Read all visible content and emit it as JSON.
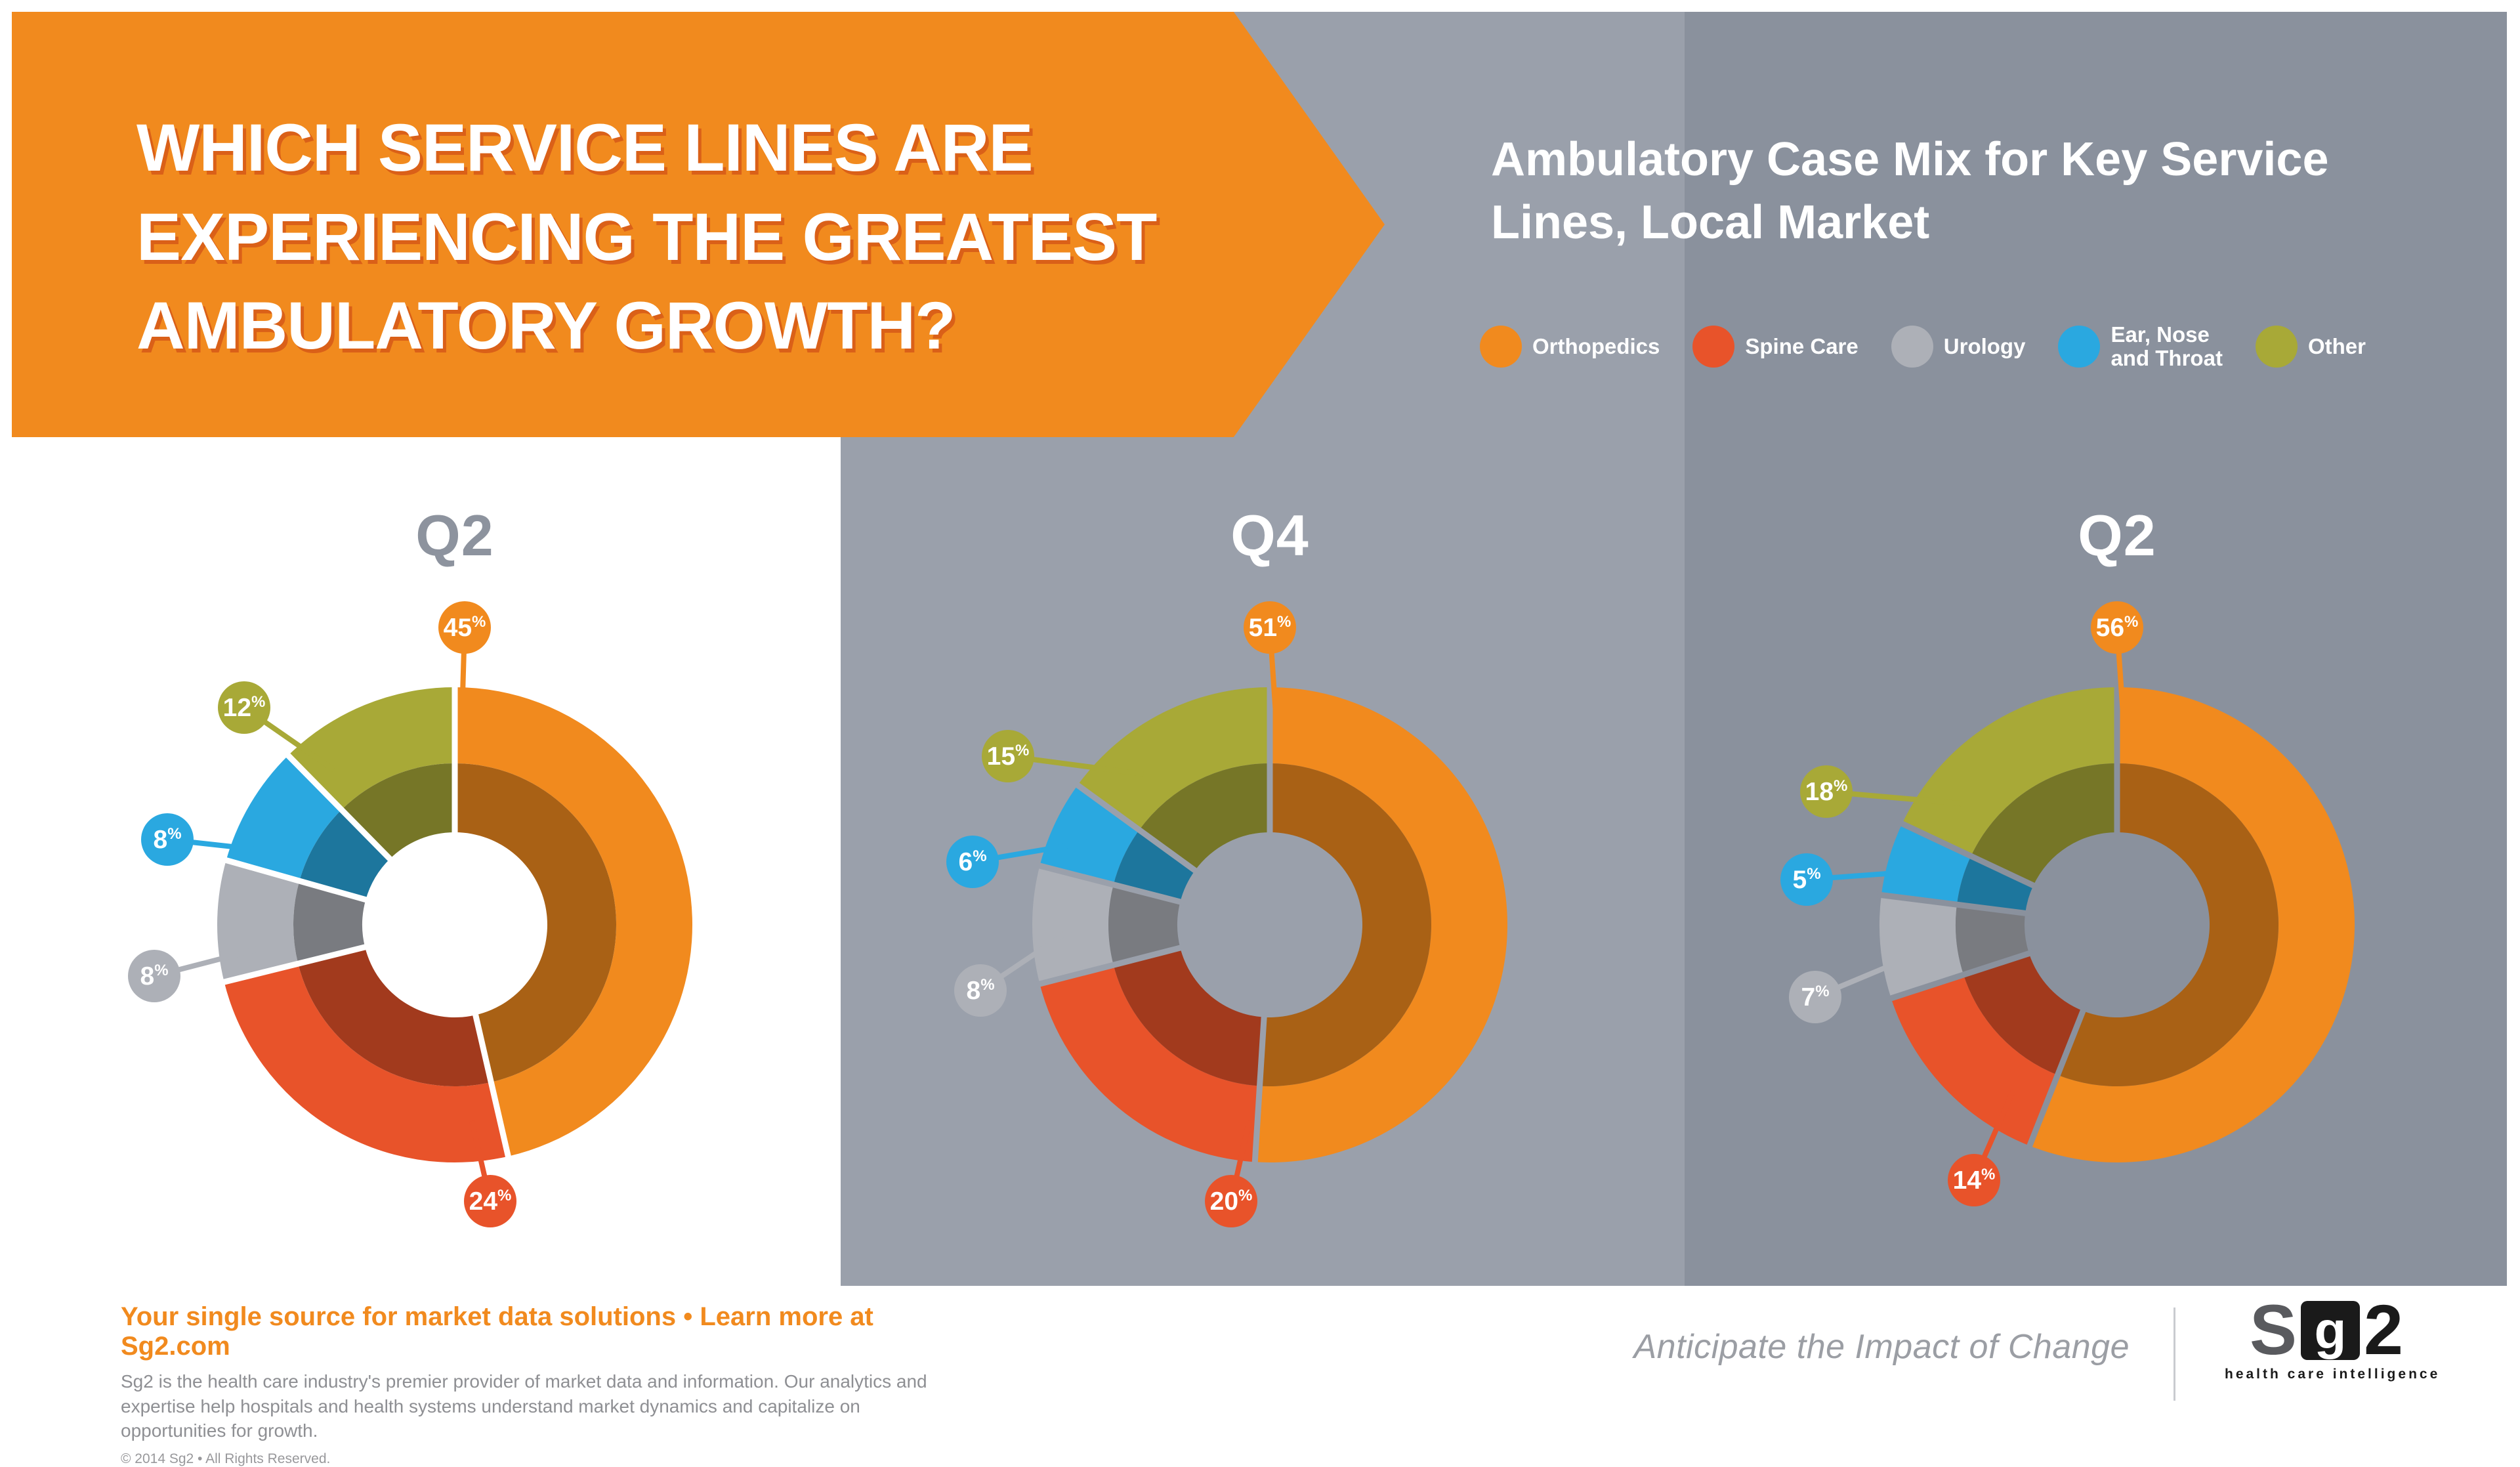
{
  "banner": {
    "title_lines": [
      "WHICH SERVICE LINES ARE",
      "EXPERIENCING THE GREATEST",
      "AMBULATORY GROWTH?"
    ],
    "bg_color": "#F18A1E"
  },
  "header": {
    "subtitle": "Ambulatory Case Mix for Key Service\nLines, Local Market"
  },
  "legend": {
    "items": [
      {
        "label": "Orthopedics",
        "color": "#F18A1E"
      },
      {
        "label": "Spine Care",
        "color": "#E8532A"
      },
      {
        "label": "Urology",
        "color": "#ADB0B7"
      },
      {
        "label": "Ear, Nose\nand Throat",
        "color": "#2AA8E0"
      },
      {
        "label": "Other",
        "color": "#A8A937"
      }
    ]
  },
  "chart_data": [
    {
      "type": "donut",
      "title": "Q2",
      "title_color": "#8D939E",
      "panel_bg": "#FFFFFF",
      "unit": "%",
      "segments": [
        {
          "label": "Orthopedics",
          "value": 45,
          "color": "#F18A1E",
          "badge_offset": [
            15,
            -453
          ],
          "attach_deg": 2
        },
        {
          "label": "Spine Care",
          "value": 24,
          "color": "#E8532A",
          "badge_offset": [
            54,
            421
          ],
          "attach_deg": 175
        },
        {
          "label": "Urology",
          "value": 8,
          "color": "#ADB0B7",
          "badge_offset": [
            -458,
            78
          ],
          "attach_deg": 263
        },
        {
          "label": "Ear, Nose and Throat",
          "value": 8,
          "color": "#2AA8E0",
          "badge_offset": [
            -438,
            -130
          ],
          "attach_deg": 292
        },
        {
          "label": "Other",
          "value": 12,
          "color": "#A8A937",
          "badge_offset": [
            -321,
            -331
          ],
          "attach_deg": 322
        }
      ]
    },
    {
      "type": "donut",
      "title": "Q4",
      "title_color": "#FFFFFF",
      "panel_bg": "#9AA0AB",
      "unit": "%",
      "segments": [
        {
          "label": "Orthopedics",
          "value": 51,
          "color": "#F18A1E",
          "badge_offset": [
            0,
            -453
          ],
          "attach_deg": 2
        },
        {
          "label": "Spine Care",
          "value": 20,
          "color": "#E8532A",
          "badge_offset": [
            -59,
            421
          ],
          "attach_deg": 186
        },
        {
          "label": "Urology",
          "value": 8,
          "color": "#ADB0B7",
          "badge_offset": [
            -441,
            100
          ],
          "attach_deg": 269
        },
        {
          "label": "Ear, Nose and Throat",
          "value": 6,
          "color": "#2AA8E0",
          "badge_offset": [
            -453,
            -96
          ],
          "attach_deg": 295
        },
        {
          "label": "Other",
          "value": 15,
          "color": "#A8A937",
          "badge_offset": [
            -399,
            -257
          ],
          "attach_deg": 320
        }
      ]
    },
    {
      "type": "donut",
      "title": "Q2",
      "title_color": "#FFFFFF",
      "panel_bg": "#8A919D",
      "unit": "%",
      "segments": [
        {
          "label": "Orthopedics",
          "value": 56,
          "color": "#F18A1E",
          "badge_offset": [
            0,
            -453
          ],
          "attach_deg": 2
        },
        {
          "label": "Spine Care",
          "value": 14,
          "color": "#E8532A",
          "badge_offset": [
            -218,
            389
          ],
          "attach_deg": 212
        },
        {
          "label": "Urology",
          "value": 7,
          "color": "#ADB0B7",
          "badge_offset": [
            -460,
            110
          ],
          "attach_deg": 262
        },
        {
          "label": "Ear, Nose and Throat",
          "value": 5,
          "color": "#2AA8E0",
          "badge_offset": [
            -473,
            -69
          ],
          "attach_deg": 286
        },
        {
          "label": "Other",
          "value": 18,
          "color": "#A8A937",
          "badge_offset": [
            -443,
            -203
          ],
          "attach_deg": 308
        }
      ]
    }
  ],
  "footer": {
    "tagline": "Your single source for market data solutions • Learn more at Sg2.com",
    "description": "Sg2 is the health care industry's premier provider of market data and information. Our analytics and expertise help hospitals and health systems understand market dynamics and capitalize on opportunities for growth.",
    "copyright": "© 2014 Sg2 • All Rights Reserved.",
    "motto": "Anticipate the Impact of Change"
  },
  "logo": {
    "s": "S",
    "g": "g",
    "two": "2",
    "caption": "health care intelligence"
  }
}
